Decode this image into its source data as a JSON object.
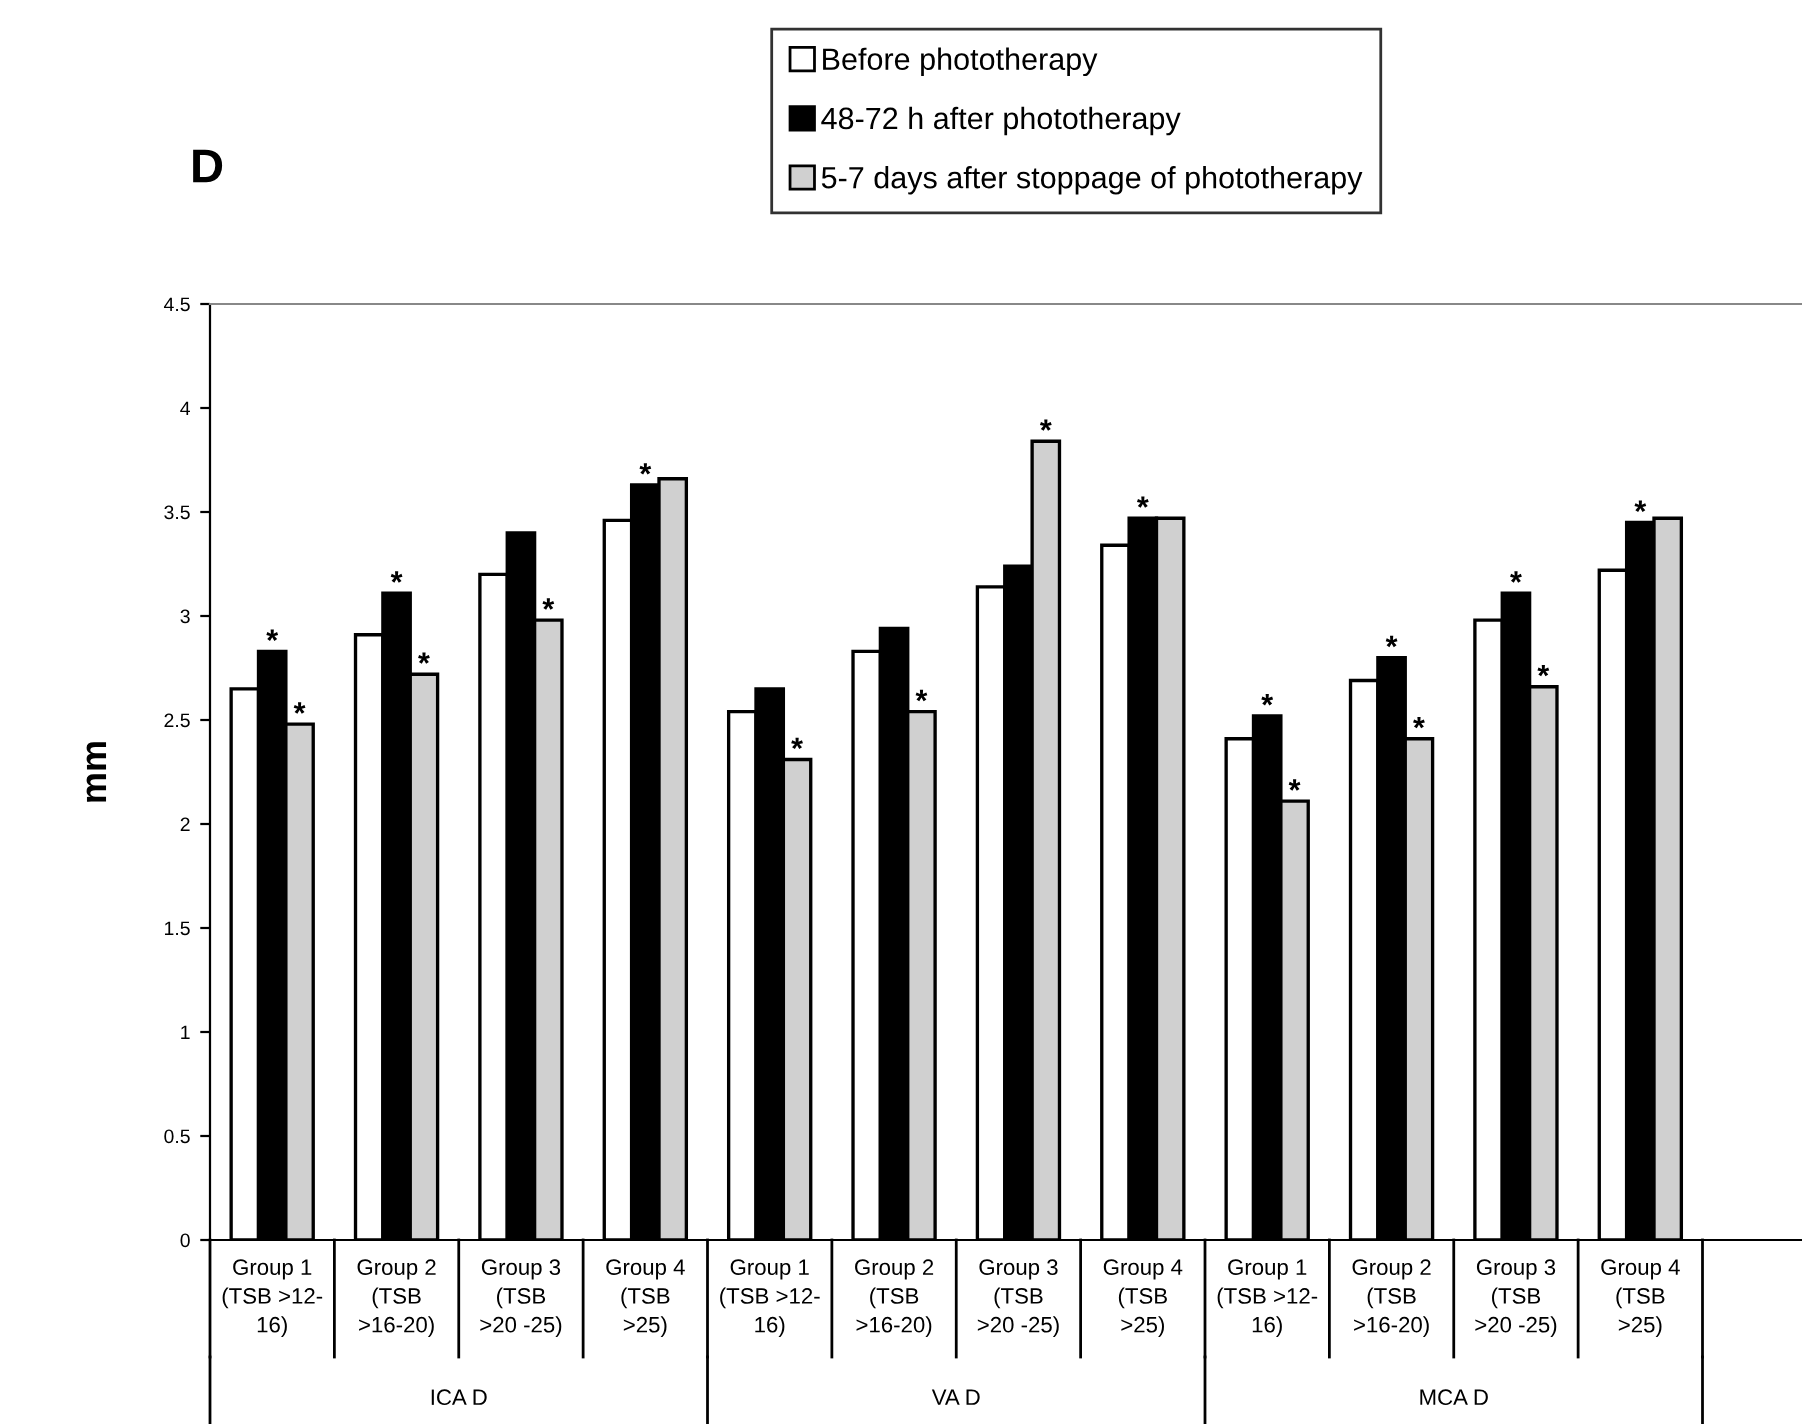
{
  "chart_data": {
    "type": "bar",
    "title": "D",
    "ylabel": "mm",
    "categories": [
      "Group 1\n(TSB >12-\n16)",
      "Group 2\n(TSB\n>16-20)",
      "Group 3\n(TSB\n>20 -25)",
      "Group 4\n(TSB\n>25)",
      "Group 1\n(TSB >12-\n16)",
      "Group 2\n(TSB\n>16-20)",
      "Group 3\n(TSB\n>20 -25)",
      "Group 4\n(TSB\n>25)",
      "Group 1\n(TSB >12-\n16)",
      "Group 2\n(TSB\n>16-20)",
      "Group 3\n(TSB\n>20 -25)",
      "Group 4\n(TSB\n>25)"
    ],
    "series": [
      {
        "name": "Before phototherapy",
        "color": "#ffffff",
        "values": [
          2.65,
          2.91,
          3.2,
          3.46,
          2.54,
          2.83,
          3.14,
          3.34,
          2.41,
          2.69,
          2.98,
          3.22
        ],
        "value_labels": [
          null,
          null,
          null,
          null,
          null,
          null,
          null,
          null,
          null,
          null,
          null,
          null
        ]
      },
      {
        "name": "48-72 h after phototherapy",
        "color": "#000000",
        "values": [
          2.83,
          3.11,
          3.4,
          3.63,
          2.65,
          2.94,
          3.24,
          3.47,
          2.52,
          2.8,
          3.11,
          3.45
        ],
        "value_labels": [
          "*",
          "*",
          null,
          "*",
          null,
          null,
          null,
          "*",
          "*",
          "*",
          "*",
          "*"
        ]
      },
      {
        "name": "5-7 days after stoppage of phototherapy",
        "color": "#d0d0d0",
        "values": [
          2.48,
          2.72,
          2.98,
          3.66,
          2.31,
          2.54,
          3.84,
          3.47,
          2.11,
          2.41,
          2.66,
          3.47
        ],
        "value_labels": [
          "*",
          "*",
          "*",
          null,
          "*",
          "*",
          "*",
          null,
          "*",
          "*",
          "*",
          null
        ]
      }
    ],
    "annotations": [
      "ICA D",
      "VA D",
      "MCA D"
    ],
    "ylim": [
      0,
      4.5
    ],
    "yticks": [
      0,
      0.5,
      1,
      1.5,
      2,
      2.5,
      3,
      3.5,
      4,
      4.5
    ],
    "legend": "top right",
    "grid": false
  }
}
